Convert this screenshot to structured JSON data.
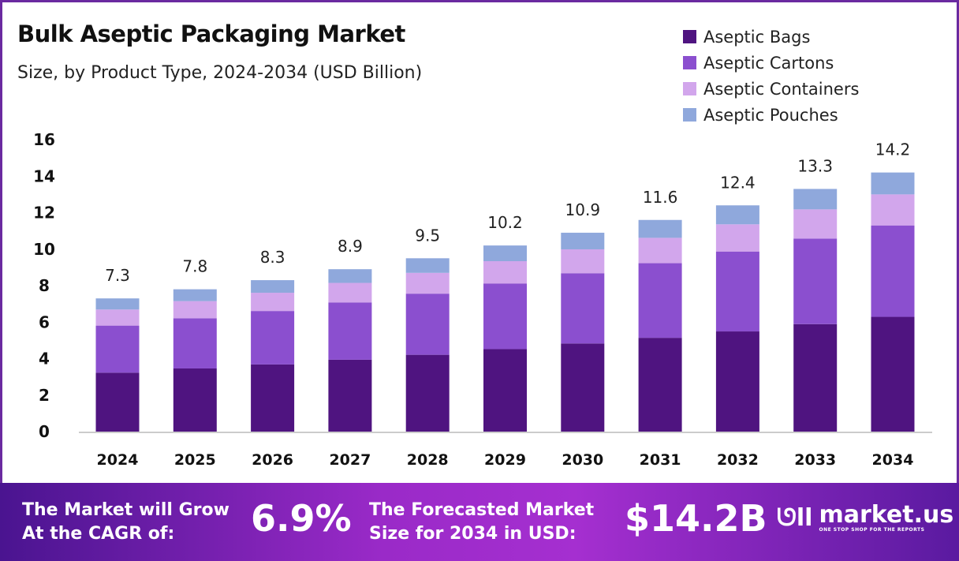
{
  "chart_data": {
    "type": "bar",
    "stacked": true,
    "title": "Bulk Aseptic Packaging Market",
    "subtitle": "Size, by Product Type, 2024-2034 (USD Billion)",
    "categories": [
      "2024",
      "2025",
      "2026",
      "2027",
      "2028",
      "2029",
      "2030",
      "2031",
      "2032",
      "2033",
      "2034"
    ],
    "totals": [
      "7.3",
      "7.8",
      "8.3",
      "8.9",
      "9.5",
      "10.2",
      "10.9",
      "11.6",
      "12.4",
      "13.3",
      "14.2"
    ],
    "series": [
      {
        "name": "Aseptic Bags",
        "color": "#4f1480",
        "values": [
          3.23,
          3.46,
          3.68,
          3.94,
          4.21,
          4.52,
          4.83,
          5.14,
          5.49,
          5.89,
          6.29
        ]
      },
      {
        "name": "Aseptic Cartons",
        "color": "#8b4fcf",
        "values": [
          2.58,
          2.75,
          2.93,
          3.14,
          3.35,
          3.6,
          3.85,
          4.09,
          4.38,
          4.69,
          5.01
        ]
      },
      {
        "name": "Aseptic Containers",
        "color": "#d2a6ec",
        "values": [
          0.88,
          0.94,
          1.0,
          1.07,
          1.14,
          1.22,
          1.31,
          1.39,
          1.49,
          1.6,
          1.7
        ]
      },
      {
        "name": "Aseptic Pouches",
        "color": "#8fa8dc",
        "values": [
          0.61,
          0.65,
          0.69,
          0.75,
          0.8,
          0.86,
          0.91,
          0.98,
          1.04,
          1.12,
          1.2
        ]
      }
    ],
    "ylim": [
      0,
      16
    ],
    "yticks": [
      "0",
      "2",
      "4",
      "6",
      "8",
      "10",
      "12",
      "14",
      "16"
    ],
    "grid": false,
    "legend": "top-right",
    "xlabel": "",
    "ylabel": ""
  },
  "banner": {
    "cagr_label_1": "The Market will Grow",
    "cagr_label_2": "At the CAGR of:",
    "cagr_value": "6.9%",
    "forecast_label_1": "The Forecasted Market",
    "forecast_label_2": "Size for 2034 in USD:",
    "forecast_value": "$14.2B",
    "logo_name": "market.us",
    "logo_tagline": "ONE STOP SHOP FOR THE REPORTS"
  }
}
